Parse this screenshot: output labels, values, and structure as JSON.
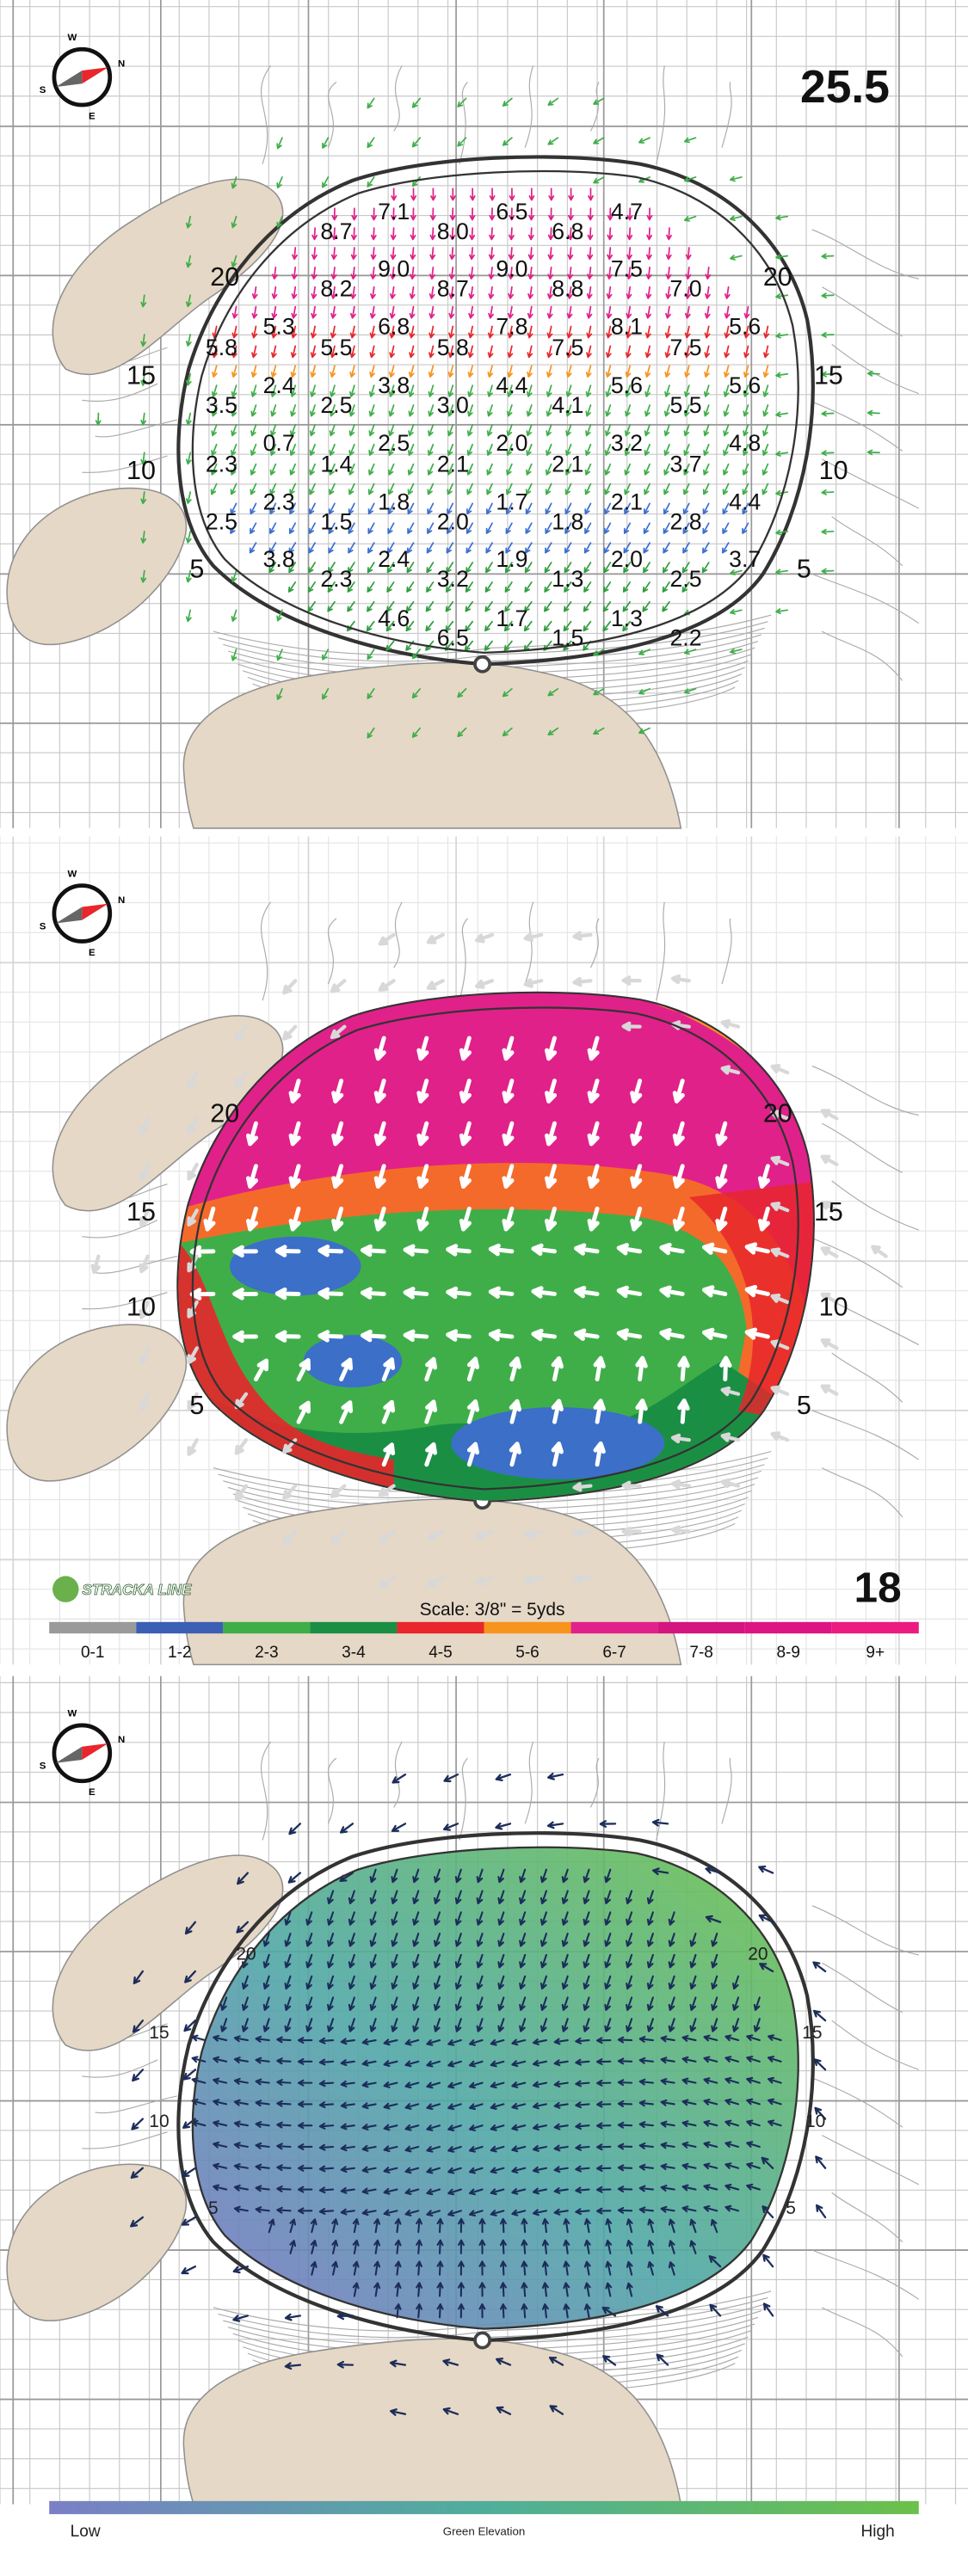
{
  "compass": {
    "n": "N",
    "s": "S",
    "w": "W",
    "e": "E"
  },
  "panels": [
    {
      "hole_length": "25.5",
      "slope_values": [
        "7.1",
        "6.5",
        "4.7",
        "8.7",
        "8.0",
        "6.8",
        "9.0",
        "9.0",
        "7.5",
        "8.2",
        "8.7",
        "8.8",
        "7.0",
        "5.3",
        "6.8",
        "7.8",
        "8.1",
        "5.6",
        "5.8",
        "5.5",
        "5.8",
        "7.5",
        "7.5",
        "2.4",
        "3.8",
        "4.4",
        "5.6",
        "5.6",
        "3.5",
        "2.5",
        "3.0",
        "4.1",
        "5.5",
        "0.7",
        "2.5",
        "2.0",
        "3.2",
        "4.8",
        "2.3",
        "1.4",
        "2.1",
        "2.1",
        "3.7",
        "2.3",
        "1.8",
        "1.7",
        "2.1",
        "4.4",
        "2.5",
        "1.5",
        "2.0",
        "1.8",
        "2.8",
        "3.8",
        "2.4",
        "1.9",
        "2.0",
        "3.7",
        "2.3",
        "3.2",
        "1.3",
        "2.5",
        "4.6",
        "1.7",
        "1.3",
        "6.5",
        "1.5",
        "2.2"
      ],
      "contour_labels": [
        "20",
        "20",
        "15",
        "15",
        "10",
        "10",
        "5",
        "5"
      ]
    },
    {
      "hole_number": "18",
      "logo": "STRACKA LINE",
      "scale": "Scale: 3/8\" = 5yds",
      "contour_labels": [
        "20",
        "20",
        "15",
        "15",
        "10",
        "10",
        "5",
        "5"
      ],
      "legend": [
        {
          "label": "0-1",
          "color": "#9a9a9a"
        },
        {
          "label": "1-2",
          "color": "#3b5fb4"
        },
        {
          "label": "2-3",
          "color": "#3fae49"
        },
        {
          "label": "3-4",
          "color": "#1a8f44"
        },
        {
          "label": "4-5",
          "color": "#e8262b"
        },
        {
          "label": "5-6",
          "color": "#f7941d"
        },
        {
          "label": "6-7",
          "color": "#e0218a"
        },
        {
          "label": "7-8",
          "color": "#d4147f"
        },
        {
          "label": "8-9",
          "color": "#dc1583"
        },
        {
          "label": "9+",
          "color": "#ec1b7f"
        }
      ]
    },
    {
      "contour_labels": [
        "20",
        "20",
        "15",
        "15",
        "10",
        "10",
        "5",
        "5"
      ],
      "legend": {
        "low": "Low",
        "title": "Green Elevation",
        "high": "High"
      }
    }
  ]
}
